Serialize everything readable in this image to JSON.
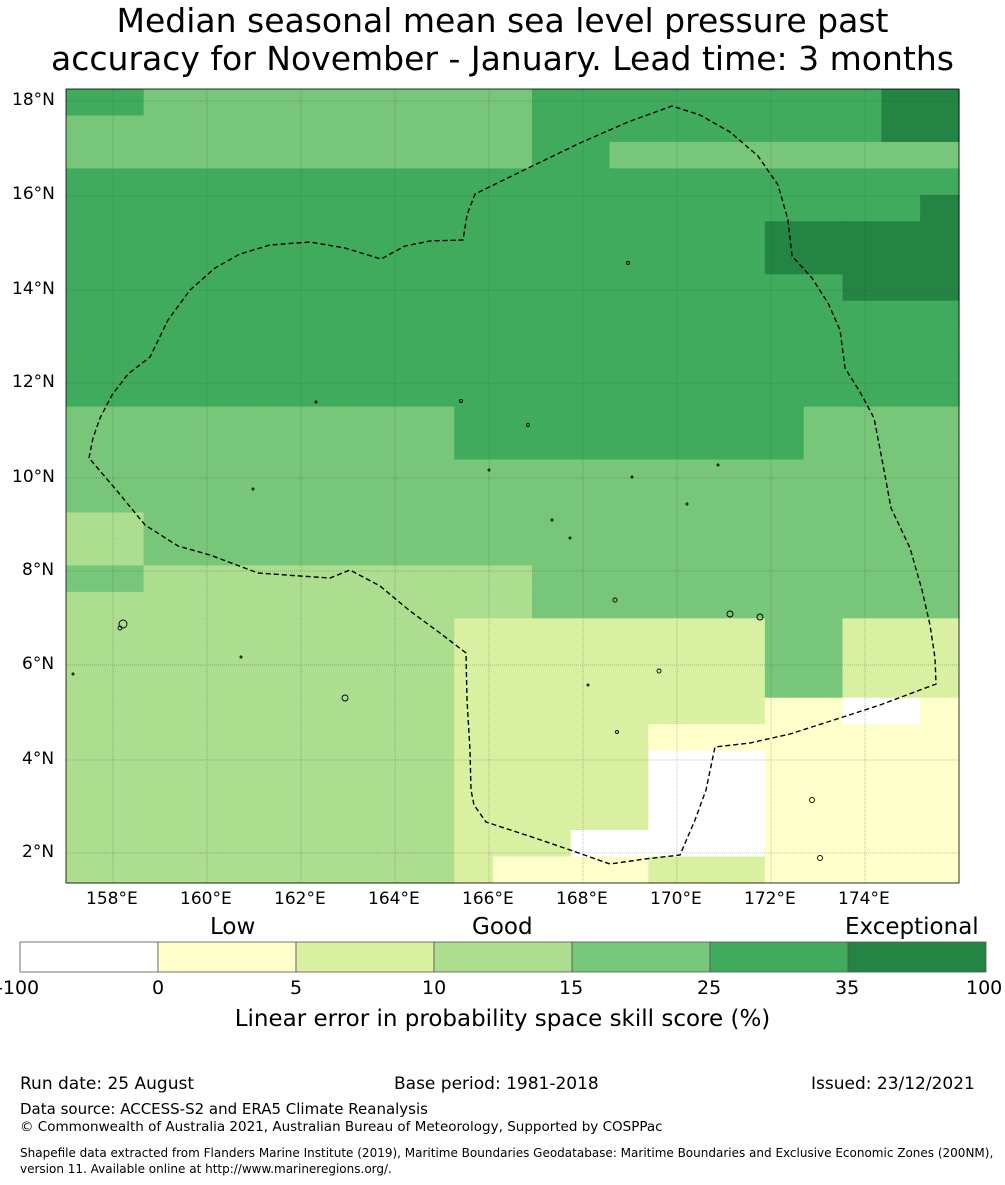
{
  "title": {
    "line1": "Median seasonal mean sea level pressure past",
    "line2": "accuracy for November - January. Lead time: 3 months"
  },
  "map": {
    "lat_labels": [
      "18°N",
      "16°N",
      "14°N",
      "12°N",
      "10°N",
      "8°N",
      "6°N",
      "4°N",
      "2°N"
    ],
    "lon_labels": [
      "158°E",
      "160°E",
      "162°E",
      "164°E",
      "166°E",
      "168°E",
      "170°E",
      "172°E",
      "174°E"
    ],
    "extent": {
      "lon_min": 157.0,
      "lon_max": 176.0,
      "lat_min": 1.4,
      "lat_max": 18.3
    },
    "class_colors": [
      "#ffffff",
      "#ffffcc",
      "#d9f0a3",
      "#addd8e",
      "#78c679",
      "#41ab5d",
      "#238443"
    ],
    "boundary_color": "#000000"
  },
  "colorbar": {
    "headings": {
      "low": "Low",
      "good": "Good",
      "exceptional": "Exceptional"
    },
    "ticks": [
      "-100",
      "0",
      "5",
      "10",
      "15",
      "25",
      "35",
      "100"
    ],
    "colors": [
      "#ffffff",
      "#ffffcc",
      "#d9f0a3",
      "#addd8e",
      "#78c679",
      "#41ab5d",
      "#238443"
    ],
    "label": "Linear error in probability space skill score (%)"
  },
  "footer": {
    "run_date": "Run date: 25 August",
    "base_period": "Base period: 1981-2018",
    "issued": "Issued: 23/12/2021",
    "data_source": "Data source: ACCESS-S2 and ERA5 Climate Reanalysis",
    "copyright": "© Commonwealth of Australia 2021, Australian Bureau of Meteorology, Supported by COSPPac",
    "shapefile_line1": "Shapefile data extracted from Flanders Marine Institute (2019), Maritime Boundaries Geodatabase: Maritime Boundaries and Exclusive Economic Zones (200NM),",
    "shapefile_line2": "version 11. Available online at http://www.marineregions.org/."
  }
}
